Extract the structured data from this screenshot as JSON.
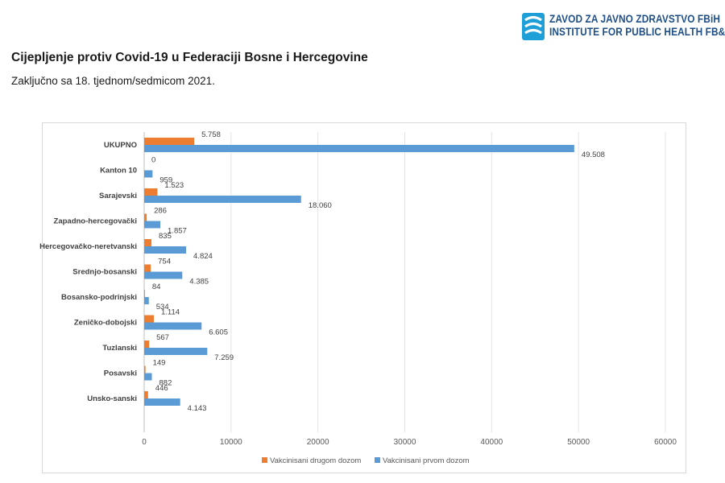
{
  "header": {
    "org_name_local": "ZAVOD ZA JAVNO ZDRAVSTVO FBiH",
    "org_name_en": "INSTITUTE FOR PUBLIC HEALTH FB&H",
    "title": "Cijepljenje protiv Covid-19 u Federaciji Bosne i Hercegovine",
    "subtitle": "Zaključno sa 18. tjednom/sedmicom 2021.",
    "brand_color": "#1f4f86",
    "logo_color": "#1e9fd8"
  },
  "chart_data": {
    "type": "bar",
    "orientation": "horizontal",
    "title": "",
    "xlabel": "",
    "ylabel": "",
    "xlim": [
      0,
      60000
    ],
    "x_ticks": [
      0,
      10000,
      20000,
      30000,
      40000,
      50000,
      60000
    ],
    "grid": "vertical",
    "legend_position": "bottom",
    "categories": [
      "UKUPNO",
      "Kanton 10",
      "Sarajevski",
      "Zapadno-hercegovački",
      "Hercegovačko-neretvanski",
      "Srednjo-bosanski",
      "Bosansko-podrinjski",
      "Zeničko-dobojski",
      "Tuzlanski",
      "Posavski",
      "Unsko-sanski"
    ],
    "series": [
      {
        "name": "Vakcinisani drugom dozom",
        "color": "#ed7d31",
        "values": [
          5758,
          0,
          1523,
          286,
          835,
          754,
          84,
          1114,
          567,
          149,
          446
        ],
        "labels": [
          "5.758",
          "0",
          "1.523",
          "286",
          "835",
          "754",
          "84",
          "1.114",
          "567",
          "149",
          "446"
        ]
      },
      {
        "name": "Vakcinisani prvom dozom",
        "color": "#5b9bd5",
        "values": [
          49508,
          959,
          18060,
          1857,
          4824,
          4385,
          534,
          6605,
          7259,
          882,
          4143
        ],
        "labels": [
          "49.508",
          "959",
          "18.060",
          "1.857",
          "4.824",
          "4.385",
          "534",
          "6.605",
          "7.259",
          "882",
          "4.143"
        ]
      }
    ]
  }
}
